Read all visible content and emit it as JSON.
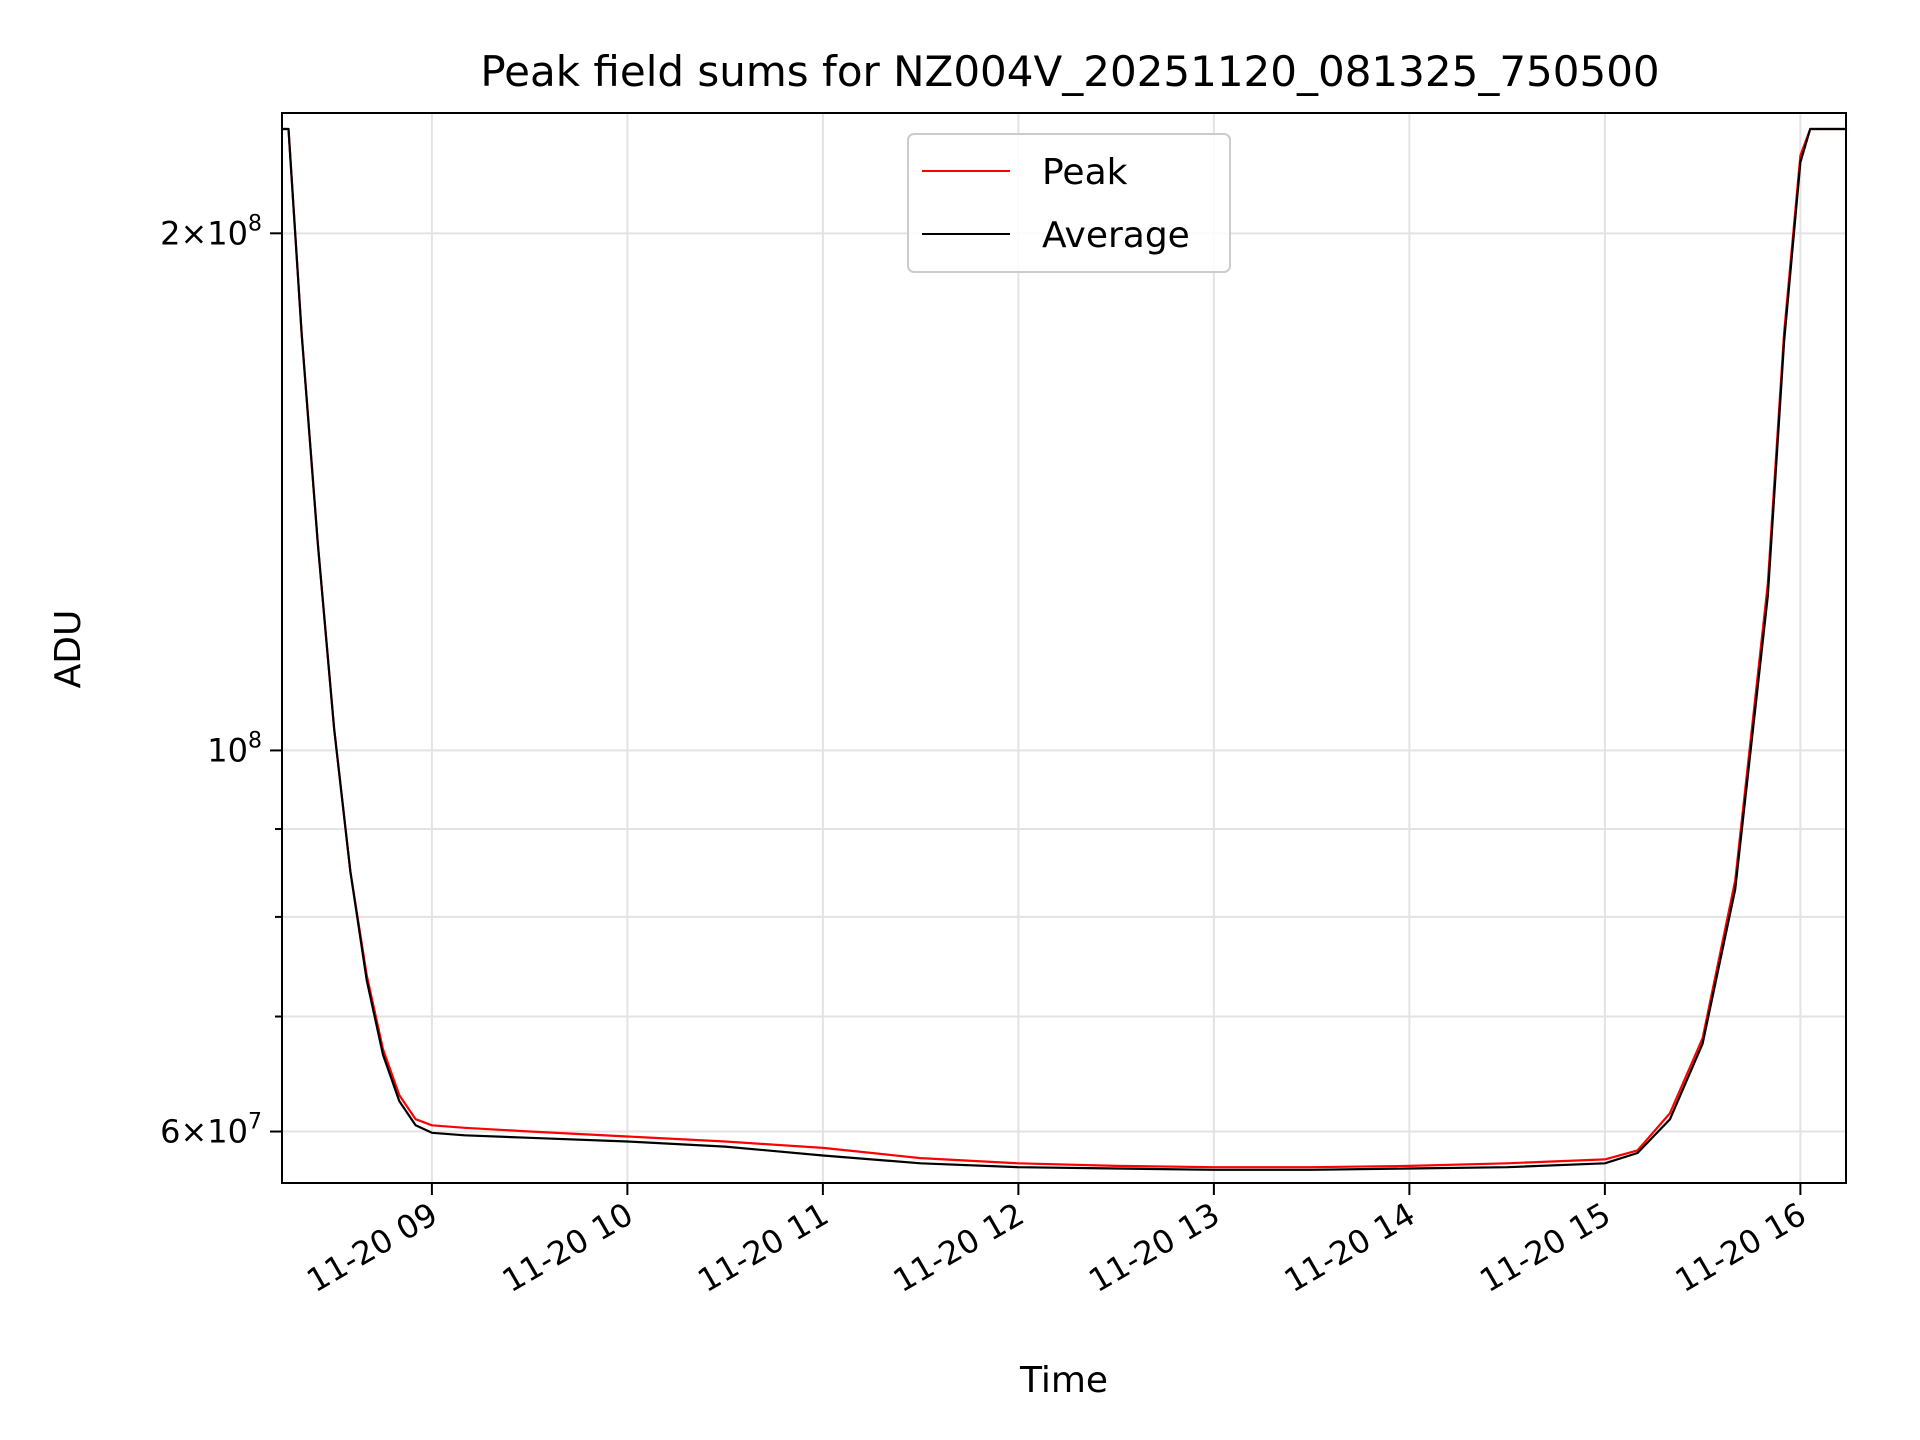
{
  "chart_data": {
    "type": "line",
    "title": "Peak field sums for NZ004V_20251120_081325_750500",
    "xlabel": "Time",
    "ylabel": "ADU",
    "yscale": "log",
    "xlim": [
      "2025-11-20 08:14",
      "2025-11-20 16:14"
    ],
    "ylim": [
      56000000,
      235000000
    ],
    "x_ticks": [
      "11-20 09",
      "11-20 10",
      "11-20 11",
      "11-20 12",
      "11-20 13",
      "11-20 14",
      "11-20 15",
      "11-20 16"
    ],
    "y_ticks": [
      {
        "value": 60000000,
        "base": "6",
        "exp": "7"
      },
      {
        "value": 100000000,
        "base": "",
        "exp": "8"
      },
      {
        "value": 200000000,
        "base": "2",
        "exp": "8"
      }
    ],
    "y_minor_ticks": [
      70000000,
      80000000,
      90000000
    ],
    "legend": {
      "position": "top-center",
      "entries": [
        "Peak",
        "Average"
      ]
    },
    "grid": true,
    "x": [
      "08:14",
      "08:16",
      "08:20",
      "08:25",
      "08:30",
      "08:35",
      "08:40",
      "08:45",
      "08:50",
      "08:55",
      "09:00",
      "09:10",
      "09:30",
      "10:00",
      "10:30",
      "11:00",
      "11:30",
      "12:00",
      "12:30",
      "13:00",
      "13:30",
      "14:00",
      "14:30",
      "15:00",
      "15:10",
      "15:20",
      "15:30",
      "15:40",
      "15:50",
      "15:55",
      "16:00",
      "16:03",
      "16:14"
    ],
    "series": [
      {
        "name": "Peak",
        "color": "#ff0000",
        "values": [
          230000000,
          230000000,
          175000000,
          132000000,
          103000000,
          85000000,
          74000000,
          67000000,
          63000000,
          61000000,
          60500000,
          60300000,
          60000000,
          59600000,
          59200000,
          58700000,
          57900000,
          57500000,
          57300000,
          57200000,
          57200000,
          57300000,
          57500000,
          57800000,
          58500000,
          61500000,
          68000000,
          84000000,
          125000000,
          175000000,
          222000000,
          230000000,
          230000000
        ]
      },
      {
        "name": "Average",
        "color": "#000000",
        "values": [
          230000000,
          230000000,
          175000000,
          132000000,
          103000000,
          85000000,
          73500000,
          66500000,
          62500000,
          60500000,
          59900000,
          59700000,
          59500000,
          59200000,
          58800000,
          58100000,
          57500000,
          57200000,
          57100000,
          57000000,
          57000000,
          57100000,
          57200000,
          57500000,
          58300000,
          61000000,
          67500000,
          83000000,
          123000000,
          173000000,
          220000000,
          230000000,
          230000000
        ]
      }
    ]
  }
}
